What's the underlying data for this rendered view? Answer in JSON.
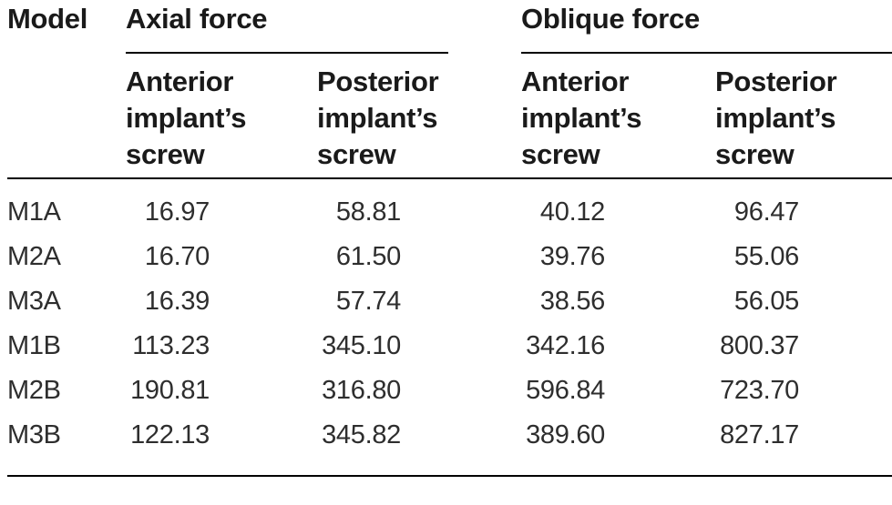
{
  "table": {
    "model_header": "Model",
    "groups": [
      {
        "label": "Axial force"
      },
      {
        "label": "Oblique force"
      }
    ],
    "subheaders": [
      "Anterior implant’s screw",
      "Posterior implant’s screw",
      "Anterior implant’s screw",
      "Posterior implant’s screw"
    ],
    "rows": [
      {
        "model": "M1A",
        "values": [
          "16.97",
          "58.81",
          "40.12",
          "96.47"
        ]
      },
      {
        "model": "M2A",
        "values": [
          "16.70",
          "61.50",
          "39.76",
          "55.06"
        ]
      },
      {
        "model": "M3A",
        "values": [
          "16.39",
          "57.74",
          "38.56",
          "56.05"
        ]
      },
      {
        "model": "M1B",
        "values": [
          "113.23",
          "345.10",
          "342.16",
          "800.37"
        ]
      },
      {
        "model": "M2B",
        "values": [
          "190.81",
          "316.80",
          "596.84",
          "723.70"
        ]
      },
      {
        "model": "M3B",
        "values": [
          "122.13",
          "345.82",
          "389.60",
          "827.17"
        ]
      }
    ],
    "colors": {
      "header_text": "#1a1a1a",
      "body_text": "#2e2e2e",
      "rule": "#000000",
      "background": "#ffffff"
    }
  }
}
